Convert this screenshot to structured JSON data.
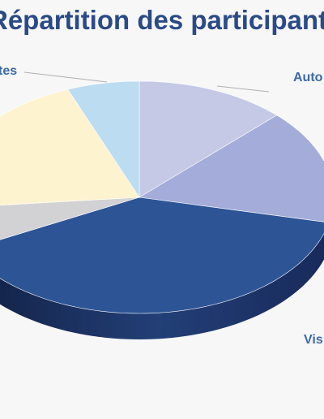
{
  "chart_data": {
    "type": "pie",
    "title": "Répartition des participants",
    "visible_labels": [
      "tes",
      "Auto",
      "Vis"
    ],
    "slices": [
      {
        "value": 12.5,
        "color": "#c5c9e6"
      },
      {
        "value": 16.0,
        "color": "#a4acd9"
      },
      {
        "value": 39.0,
        "color": "#2d5596"
      },
      {
        "value": 6.0,
        "color": "#d2d2d4"
      },
      {
        "value": 20.5,
        "color": "#fef3cf"
      },
      {
        "value": 6.0,
        "color": "#bcdcf1"
      }
    ],
    "side_colors": {
      "dark": "#13234a",
      "base": "#1f3a72"
    }
  }
}
